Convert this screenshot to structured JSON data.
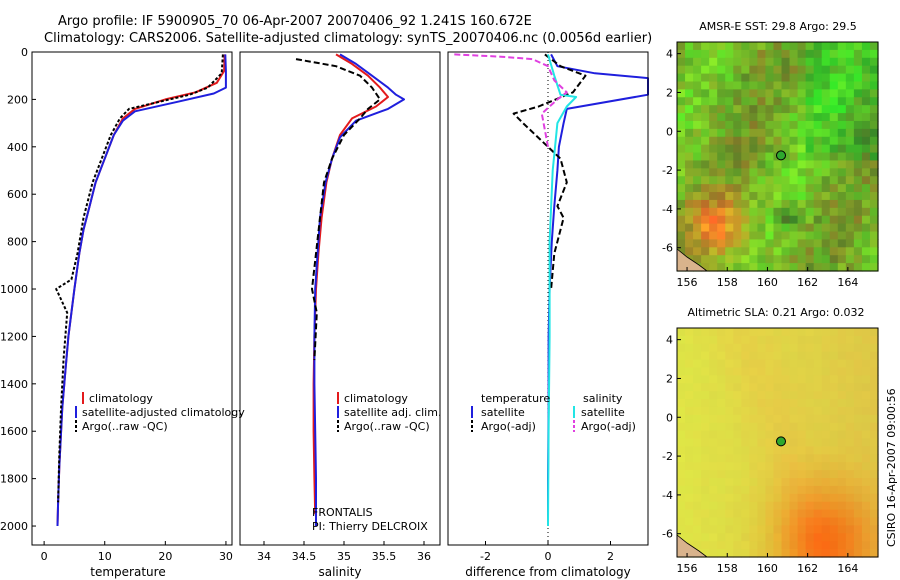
{
  "header": {
    "line1": "Argo profile: IF 5900905_70 06-Apr-2007 20070406_92 1.241S 160.672E",
    "line2": "Climatology: CARS2006. Satellite-adjusted climatology: synTS_20070406.nc (0.0056d earlier)"
  },
  "side_label": "CSIRO 16-Apr-2007 09:00:56",
  "colors": {
    "clim": "#e31a1c",
    "sat": "#1f1fdd",
    "argo": "#000000",
    "sat_s": "#22e5e5",
    "argo_s": "#e040e0"
  },
  "chart_data": [
    {
      "type": "line",
      "id": "temperature",
      "xlabel": "temperature",
      "xlim": [
        -2,
        31
      ],
      "ylim": [
        0,
        2080
      ],
      "xticks": [
        "0",
        "10",
        "20",
        "30"
      ],
      "xtick_values": [
        0,
        10,
        20,
        30
      ],
      "yticks": [
        "0",
        "200",
        "400",
        "600",
        "800",
        "1000",
        "1200",
        "1400",
        "1600",
        "1800",
        "2000"
      ],
      "ytick_values": [
        0,
        200,
        400,
        600,
        800,
        1000,
        1200,
        1400,
        1600,
        1800,
        2000
      ],
      "legend": [
        "climatology",
        "satellite-adjusted climatology",
        "Argo(..raw -QC)"
      ],
      "series": [
        {
          "name": "climatology",
          "key": "clim",
          "dash": "",
          "x": [
            29.8,
            29.7,
            28.5,
            25,
            20,
            15,
            13,
            11.5,
            10,
            8.5,
            7.5,
            6.5,
            5.8,
            5,
            4.5,
            4,
            3.5,
            3,
            2.8,
            2.5,
            2.3,
            2.2
          ],
          "y": [
            10,
            80,
            130,
            170,
            200,
            240,
            280,
            350,
            450,
            550,
            650,
            750,
            850,
            1000,
            1100,
            1200,
            1350,
            1500,
            1600,
            1750,
            1900,
            2000
          ]
        },
        {
          "name": "satellite-adjusted climatology",
          "key": "sat",
          "dash": "",
          "x": [
            29.9,
            30,
            30,
            28,
            22,
            15,
            13,
            11.5,
            10,
            8.5,
            7.5,
            6.5,
            5.8,
            5,
            4.5,
            4,
            3.5,
            3,
            2.8,
            2.5,
            2.3,
            2.2
          ],
          "y": [
            10,
            80,
            150,
            175,
            210,
            250,
            290,
            350,
            450,
            550,
            650,
            750,
            850,
            1000,
            1100,
            1200,
            1350,
            1500,
            1600,
            1750,
            1900,
            2000
          ]
        },
        {
          "name": "Argo(..raw -QC)",
          "key": "argo",
          "dash": "3,2",
          "x": [
            29.5,
            29.3,
            27,
            24,
            19,
            14,
            12.5,
            11,
            9.5,
            8,
            6.5,
            5.5,
            4.5,
            2,
            3.8,
            3.2,
            2.8,
            2.5,
            2.3
          ],
          "y": [
            10,
            90,
            150,
            180,
            210,
            240,
            280,
            350,
            450,
            550,
            700,
            850,
            960,
            1000,
            1100,
            1300,
            1500,
            1700,
            1900
          ]
        }
      ]
    },
    {
      "type": "line",
      "id": "salinity",
      "xlabel": "salinity",
      "xlim": [
        33.7,
        36.2
      ],
      "ylim": [
        0,
        2080
      ],
      "xticks": [
        "34",
        "34.5",
        "35",
        "35.5",
        "36"
      ],
      "xtick_values": [
        34,
        34.5,
        35,
        35.5,
        36
      ],
      "legend": [
        "climatology",
        "satellite adj. clim.",
        "Argo(..raw -QC)"
      ],
      "annotation": [
        "FRONTALIS",
        "PI: Thierry DELCROIX"
      ],
      "series": [
        {
          "name": "climatology",
          "key": "clim",
          "dash": "",
          "x": [
            34.9,
            35.1,
            35.3,
            35.45,
            35.55,
            35.4,
            35.1,
            34.95,
            34.85,
            34.78,
            34.72,
            34.68,
            34.65,
            34.63,
            34.62,
            34.62,
            34.63,
            34.64
          ],
          "y": [
            10,
            50,
            100,
            150,
            190,
            230,
            280,
            350,
            450,
            550,
            700,
            850,
            1000,
            1200,
            1400,
            1600,
            1800,
            1950
          ]
        },
        {
          "name": "satellite adj. clim.",
          "key": "sat",
          "dash": "",
          "x": [
            34.95,
            35.15,
            35.35,
            35.55,
            35.65,
            35.75,
            35.55,
            35.15,
            34.95,
            34.85,
            34.77,
            34.7,
            34.67,
            34.64,
            34.63,
            34.63,
            34.64,
            34.65,
            34.65
          ],
          "y": [
            10,
            50,
            100,
            150,
            180,
            200,
            240,
            290,
            360,
            450,
            550,
            700,
            850,
            1000,
            1200,
            1400,
            1600,
            1800,
            2000
          ]
        },
        {
          "name": "Argo(..raw -QC)",
          "key": "argo",
          "dash": "6,3",
          "x": [
            34.4,
            34.9,
            35.2,
            35.35,
            35.45,
            35.3,
            35.2,
            35.0,
            34.85,
            34.75,
            34.7,
            34.6,
            34.66,
            34.63
          ],
          "y": [
            30,
            60,
            100,
            150,
            200,
            240,
            280,
            350,
            450,
            550,
            700,
            1000,
            1100,
            1300
          ]
        }
      ]
    },
    {
      "type": "line",
      "id": "difference",
      "xlabel": "difference from climatology",
      "xlim": [
        -3.2,
        3.2
      ],
      "ylim": [
        0,
        2080
      ],
      "xticks": [
        "-2",
        "0",
        "2"
      ],
      "xtick_values": [
        -2,
        0,
        2
      ],
      "legend": [
        "temperature",
        "satellite",
        "Argo(-adj)",
        "salinity",
        "satellite",
        "Argo(-adj)"
      ],
      "series": [
        {
          "name": "temperature satellite",
          "key": "sat",
          "dash": "",
          "x": [
            0.1,
            0.3,
            1.5,
            3.2,
            3.2,
            0.6,
            0.5,
            0.35,
            0.3,
            0.2,
            0.12,
            0.05,
            0.02,
            0.02,
            0,
            0
          ],
          "y": [
            10,
            60,
            90,
            110,
            180,
            240,
            300,
            400,
            500,
            650,
            800,
            1000,
            1200,
            1500,
            1800,
            2000
          ]
        },
        {
          "name": "temperature Argo(-adj)",
          "key": "argo",
          "dash": "6,3",
          "x": [
            -0.1,
            0.4,
            1.2,
            0.8,
            -0.3,
            -1.1,
            -0.8,
            0.4,
            0.6,
            0.3,
            0.5,
            0.2,
            0.1
          ],
          "y": [
            10,
            60,
            100,
            170,
            230,
            260,
            300,
            450,
            550,
            650,
            700,
            850,
            1000
          ]
        },
        {
          "name": "salinity satellite",
          "key": "sat_s",
          "dash": "",
          "x": [
            0.0,
            0.2,
            0.4,
            0.9,
            0.6,
            0.3,
            0.15,
            0.05,
            0.05,
            0.02,
            0
          ],
          "y": [
            10,
            100,
            180,
            190,
            230,
            300,
            500,
            800,
            1200,
            1600,
            2000
          ]
        },
        {
          "name": "salinity Argo(-adj)",
          "key": "argo_s",
          "dash": "6,3",
          "x": [
            -3,
            -1.5,
            -0.5,
            0,
            0.2,
            0.6,
            0.3,
            -0.2,
            0
          ],
          "y": [
            10,
            20,
            30,
            60,
            120,
            170,
            200,
            260,
            400
          ]
        }
      ]
    },
    {
      "type": "heatmap",
      "id": "sst-map",
      "title": "AMSR-E SST: 29.8 Argo: 29.5",
      "xlim": [
        155.5,
        165.5
      ],
      "ylim": [
        -7.2,
        4.6
      ],
      "xticks": [
        "156",
        "158",
        "160",
        "162",
        "164"
      ],
      "xtick_values": [
        156,
        158,
        160,
        162,
        164
      ],
      "yticks": [
        "4",
        "2",
        "0",
        "-2",
        "-4",
        "-6"
      ],
      "ytick_values": [
        4,
        2,
        0,
        -2,
        -4,
        -6
      ],
      "argo_marker": {
        "lon": 160.672,
        "lat": -1.241
      }
    },
    {
      "type": "heatmap",
      "id": "sla-map",
      "title": "Altimetric SLA: 0.21 Argo: 0.032",
      "xlim": [
        155.5,
        165.5
      ],
      "ylim": [
        -7.2,
        4.6
      ],
      "xticks": [
        "156",
        "158",
        "160",
        "162",
        "164"
      ],
      "xtick_values": [
        156,
        158,
        160,
        162,
        164
      ],
      "yticks": [
        "4",
        "2",
        "0",
        "-2",
        "-4",
        "-6"
      ],
      "ytick_values": [
        4,
        2,
        0,
        -2,
        -4,
        -6
      ],
      "argo_marker": {
        "lon": 160.672,
        "lat": -1.241
      }
    }
  ]
}
